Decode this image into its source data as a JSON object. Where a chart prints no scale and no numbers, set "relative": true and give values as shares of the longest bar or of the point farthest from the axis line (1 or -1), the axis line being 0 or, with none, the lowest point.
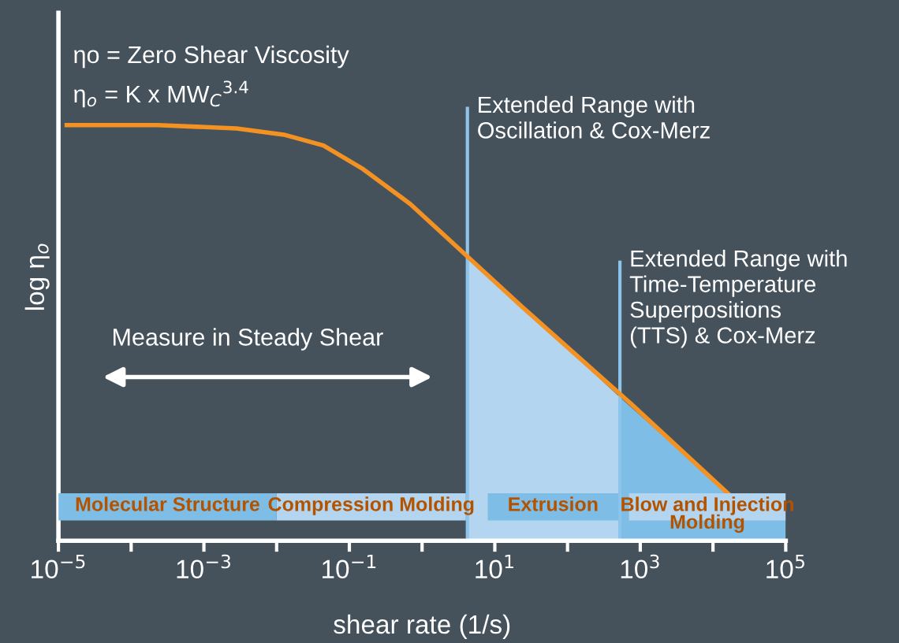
{
  "chart_data": {
    "type": "line",
    "xlabel": "shear rate (1/s)",
    "ylabel": "log η$_{o}$",
    "relative": true,
    "log": "x",
    "xlim": [
      1e-05,
      100000
    ],
    "xticks": [
      {
        "value": 1e-05,
        "label": "10$^{−5}$"
      },
      {
        "value": 0.0001,
        "label": null
      },
      {
        "value": 0.001,
        "label": "10$^{−3}$"
      },
      {
        "value": 0.01,
        "label": null
      },
      {
        "value": 0.1,
        "label": "10$^{−1}$"
      },
      {
        "value": 1,
        "label": null
      },
      {
        "value": 10,
        "label": "10$^{1}$"
      },
      {
        "value": 100,
        "label": null
      },
      {
        "value": 1000,
        "label": "10$^{3}$"
      },
      {
        "value": 10000,
        "label": null
      },
      {
        "value": 100000,
        "label": "10$^{5}$"
      }
    ],
    "series": [
      {
        "type": "area",
        "color": "#b3d5ef",
        "x": [
          4.2,
          23,
          525
        ],
        "values": [
          0.684,
          0.565,
          0.345
        ]
      },
      {
        "type": "area",
        "color": "#7dbde6",
        "x": [
          525,
          16000,
          100000
        ],
        "values": [
          0.345,
          0.114,
          0.114
        ]
      },
      {
        "color": "#f39222",
        "x": [
          1.3e-05,
          0.00023,
          0.0028,
          0.0126,
          0.044,
          0.155,
          0.69,
          4.2,
          23,
          740,
          16000
        ],
        "values": [
          1.0,
          1.0,
          0.992,
          0.977,
          0.951,
          0.894,
          0.81,
          0.684,
          0.565,
          0.33,
          0.114
        ]
      }
    ],
    "ref_lines": [
      {
        "axis": "x",
        "value": 4.2,
        "label": "Extended Range with\nOscillation & Cox-Merz",
        "color": "#8cc4ec"
      },
      {
        "axis": "x",
        "value": 525,
        "label": "Extended Range with\nTime-Temperature\nSuperpositions\n(TTS) & Cox-Merz",
        "color": "#8cc4ec"
      }
    ],
    "bands": [
      {
        "axis": "x",
        "from": 1e-05,
        "to": 0.01,
        "label": "Molecular Structure",
        "color": "#7dbde6"
      },
      {
        "axis": "x",
        "from": 0.01,
        "to": 4,
        "label": "Compression Molding",
        "color": "#b3d5ef"
      },
      {
        "axis": "x",
        "from": 8,
        "to": 500,
        "label": "Extrusion",
        "color": "#7dbde6"
      },
      {
        "axis": "x",
        "from": 700,
        "to": 100000,
        "label": "Blow and Injection\nMolding",
        "color": "#b3d5ef"
      }
    ],
    "annotations": [
      "ηo = Zero Shear Viscosity",
      "η$_{o}$ = K x MW$_{C}$$^{3.4}$",
      "Measure in Steady Shear"
    ],
    "grid": false,
    "legend": false,
    "marker": "none",
    "line_style": "solid"
  }
}
